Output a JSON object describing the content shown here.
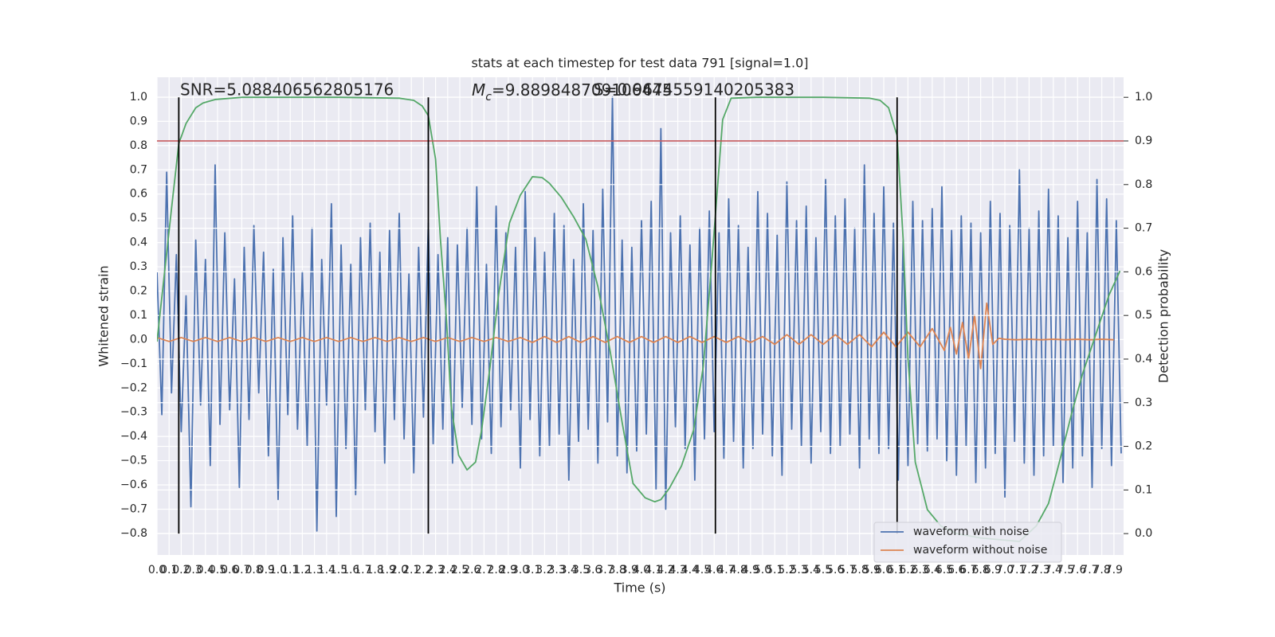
{
  "chart_data": {
    "type": "line",
    "title": "stats at each timestep for test data 791 [signal=1.0]",
    "xlabel": "Time (s)",
    "ylabel": "Whitened strain",
    "y2label": "Detection probability",
    "xlim": [
      0,
      7.98
    ],
    "ylim": [
      -0.889,
      1.082
    ],
    "y2lim": [
      -0.049,
      1.046
    ],
    "grid": true,
    "legend": "lower right",
    "xticks": [
      {
        "value": 0,
        "label": "0.0"
      },
      0.1,
      0.2,
      0.3,
      0.4,
      0.5,
      0.6,
      0.7,
      0.8,
      0.9,
      {
        "value": 1,
        "label": "1.0"
      },
      1.1,
      1.2,
      1.3,
      1.4,
      1.5,
      1.6,
      1.7,
      1.8,
      1.9,
      {
        "value": 2,
        "label": "2.0"
      },
      2.1,
      2.2,
      2.3,
      2.4,
      2.5,
      2.6,
      2.7,
      2.8,
      2.9,
      {
        "value": 3,
        "label": "3.0"
      },
      3.1,
      3.2,
      3.3,
      3.4,
      3.5,
      3.6,
      3.7,
      3.8,
      3.9,
      {
        "value": 4,
        "label": "4.0"
      },
      4.1,
      4.2,
      4.3,
      4.4,
      4.5,
      4.6,
      4.7,
      4.8,
      4.9,
      {
        "value": 5,
        "label": "5.0"
      },
      5.1,
      5.2,
      5.3,
      5.4,
      5.5,
      5.6,
      5.7,
      5.8,
      5.9,
      {
        "value": 6,
        "label": "6.0"
      },
      6.1,
      6.2,
      6.3,
      6.4,
      6.5,
      6.6,
      6.7,
      6.8,
      6.9,
      {
        "value": 7,
        "label": "7.0"
      },
      7.1,
      7.2,
      7.3,
      7.4,
      7.5,
      7.6,
      7.7,
      7.8,
      7.9
    ],
    "yticks": [
      {
        "value": -0.8,
        "label": "−0.8"
      },
      {
        "value": -0.7,
        "label": "−0.7"
      },
      {
        "value": -0.6,
        "label": "−0.6"
      },
      {
        "value": -0.5,
        "label": "−0.5"
      },
      {
        "value": -0.4,
        "label": "−0.4"
      },
      {
        "value": -0.3,
        "label": "−0.3"
      },
      {
        "value": -0.2,
        "label": "−0.2"
      },
      {
        "value": -0.1,
        "label": "−0.1"
      },
      {
        "value": 0,
        "label": "0.0"
      },
      0.1,
      0.2,
      0.3,
      0.4,
      0.5,
      0.6,
      0.7,
      0.8,
      0.9,
      {
        "value": 1,
        "label": "1.0"
      }
    ],
    "y2ticks": [
      {
        "value": 0,
        "label": "0.0"
      },
      0.1,
      0.2,
      0.3,
      0.4,
      0.5,
      0.6,
      0.7,
      0.8,
      0.9,
      {
        "value": 1,
        "label": "1.0"
      }
    ],
    "series": [
      {
        "name": "waveform with noise",
        "color": "#4c72b0",
        "x": [
          0,
          0.04,
          0.08,
          0.12,
          0.16,
          0.2,
          0.24,
          0.28,
          0.32,
          0.36,
          0.4,
          0.44,
          0.48,
          0.52,
          0.56,
          0.6,
          0.64,
          0.68,
          0.72,
          0.76,
          0.8,
          0.84,
          0.88,
          0.92,
          0.96,
          1,
          1.04,
          1.08,
          1.12,
          1.16,
          1.2,
          1.24,
          1.28,
          1.32,
          1.36,
          1.4,
          1.44,
          1.48,
          1.52,
          1.56,
          1.6,
          1.64,
          1.68,
          1.72,
          1.76,
          1.8,
          1.84,
          1.88,
          1.92,
          1.96,
          2,
          2.04,
          2.08,
          2.12,
          2.16,
          2.2,
          2.24,
          2.28,
          2.32,
          2.36,
          2.4,
          2.44,
          2.48,
          2.52,
          2.56,
          2.6,
          2.64,
          2.68,
          2.72,
          2.76,
          2.8,
          2.84,
          2.88,
          2.92,
          2.96,
          3,
          3.04,
          3.08,
          3.12,
          3.16,
          3.2,
          3.24,
          3.28,
          3.32,
          3.36,
          3.4,
          3.44,
          3.48,
          3.52,
          3.56,
          3.6,
          3.64,
          3.68,
          3.72,
          3.76,
          3.8,
          3.84,
          3.88,
          3.92,
          3.96,
          4,
          4.04,
          4.08,
          4.12,
          4.16,
          4.2,
          4.24,
          4.28,
          4.32,
          4.36,
          4.4,
          4.44,
          4.48,
          4.52,
          4.56,
          4.6,
          4.64,
          4.68,
          4.72,
          4.76,
          4.8,
          4.84,
          4.88,
          4.92,
          4.96,
          5,
          5.04,
          5.08,
          5.12,
          5.16,
          5.2,
          5.24,
          5.28,
          5.32,
          5.36,
          5.4,
          5.44,
          5.48,
          5.52,
          5.56,
          5.6,
          5.64,
          5.68,
          5.72,
          5.76,
          5.8,
          5.84,
          5.88,
          5.92,
          5.96,
          6,
          6.04,
          6.08,
          6.12,
          6.16,
          6.2,
          6.24,
          6.28,
          6.32,
          6.36,
          6.4,
          6.44,
          6.48,
          6.52,
          6.56,
          6.6,
          6.64,
          6.68,
          6.72,
          6.76,
          6.8,
          6.84,
          6.88,
          6.92,
          6.96,
          7,
          7.04,
          7.08,
          7.12,
          7.16,
          7.2,
          7.24,
          7.28,
          7.32,
          7.36,
          7.4,
          7.44,
          7.48,
          7.52,
          7.56,
          7.6,
          7.64,
          7.68,
          7.72,
          7.76,
          7.8,
          7.84,
          7.88,
          7.92,
          7.96
        ],
        "values": [
          0.28,
          -0.31,
          0.69,
          -0.22,
          0.35,
          -0.38,
          0.18,
          -0.69,
          0.41,
          -0.27,
          0.33,
          -0.52,
          0.72,
          -0.35,
          0.44,
          -0.29,
          0.25,
          -0.61,
          0.38,
          -0.33,
          0.47,
          -0.22,
          0.36,
          -0.48,
          0.29,
          -0.66,
          0.42,
          -0.31,
          0.51,
          -0.37,
          0.28,
          -0.44,
          0.46,
          -0.79,
          0.33,
          -0.27,
          0.56,
          -0.73,
          0.39,
          -0.45,
          0.31,
          -0.64,
          0.42,
          -0.29,
          0.48,
          -0.38,
          0.36,
          -0.51,
          0.45,
          -0.33,
          0.52,
          -0.41,
          0.27,
          -0.55,
          0.38,
          -0.32,
          0.48,
          -0.43,
          0.35,
          -0.37,
          0.42,
          -0.51,
          0.39,
          -0.28,
          0.46,
          -0.35,
          0.63,
          -0.41,
          0.31,
          -0.47,
          0.55,
          -0.36,
          0.44,
          -0.29,
          0.38,
          -0.53,
          0.61,
          -0.33,
          0.42,
          -0.48,
          0.36,
          -0.44,
          0.52,
          -0.39,
          0.47,
          -0.58,
          0.33,
          -0.42,
          0.56,
          -0.37,
          0.45,
          -0.51,
          0.62,
          -0.34,
          1.0,
          -0.48,
          0.41,
          -0.55,
          0.38,
          -0.46,
          0.49,
          -0.39,
          0.57,
          -0.62,
          0.87,
          -0.7,
          0.44,
          -0.36,
          0.51,
          -0.45,
          0.39,
          -0.58,
          0.46,
          -0.41,
          0.53,
          -0.38,
          0.44,
          -0.49,
          0.58,
          -0.42,
          0.47,
          -0.53,
          0.38,
          -0.45,
          0.61,
          -0.39,
          0.52,
          -0.48,
          0.43,
          -0.56,
          0.65,
          -0.37,
          0.49,
          -0.44,
          0.55,
          -0.51,
          0.42,
          -0.38,
          0.66,
          -0.47,
          0.51,
          -0.44,
          0.58,
          -0.39,
          0.46,
          -0.53,
          0.72,
          -0.41,
          0.52,
          -0.47,
          0.63,
          -0.45,
          0.48,
          -0.58,
          0.41,
          -0.52,
          0.57,
          -0.43,
          0.49,
          -0.46,
          0.54,
          -0.41,
          0.63,
          -0.5,
          0.45,
          -0.56,
          0.51,
          -0.44,
          0.48,
          -0.59,
          0.44,
          -0.53,
          0.57,
          -0.47,
          0.52,
          -0.65,
          0.47,
          -0.42,
          0.7,
          -0.51,
          0.46,
          -0.56,
          0.53,
          -0.48,
          0.62,
          -0.44,
          0.51,
          -0.59,
          0.42,
          -0.53,
          0.57,
          -0.48,
          0.44,
          -0.61,
          0.66,
          -0.45,
          0.58,
          -0.52,
          0.49,
          -0.47
        ]
      },
      {
        "name": "waveform without noise",
        "color": "#dd8452",
        "x": [
          0,
          0.1,
          0.2,
          0.3,
          0.4,
          0.5,
          0.6,
          0.7,
          0.8,
          0.9,
          1,
          1.1,
          1.2,
          1.3,
          1.4,
          1.5,
          1.6,
          1.7,
          1.8,
          1.9,
          2,
          2.1,
          2.2,
          2.3,
          2.4,
          2.5,
          2.6,
          2.7,
          2.8,
          2.9,
          3,
          3.1,
          3.2,
          3.3,
          3.4,
          3.5,
          3.6,
          3.7,
          3.8,
          3.9,
          4,
          4.1,
          4.2,
          4.3,
          4.4,
          4.5,
          4.6,
          4.7,
          4.8,
          4.9,
          5,
          5.1,
          5.2,
          5.3,
          5.4,
          5.5,
          5.6,
          5.7,
          5.8,
          5.9,
          6,
          6.1,
          6.2,
          6.3,
          6.4,
          6.5,
          6.55,
          6.6,
          6.65,
          6.7,
          6.75,
          6.8,
          6.85,
          6.9,
          6.95,
          7,
          7.1,
          7.2,
          7.3,
          7.4,
          7.5,
          7.6,
          7.7,
          7.8,
          7.9
        ],
        "values": [
          0.008,
          -0.008,
          0.008,
          -0.008,
          0.008,
          -0.008,
          0.008,
          -0.008,
          0.008,
          -0.008,
          0.008,
          -0.008,
          0.008,
          -0.008,
          0.008,
          -0.008,
          0.008,
          -0.008,
          0.008,
          -0.008,
          0.008,
          -0.008,
          0.008,
          -0.008,
          0.008,
          -0.008,
          0.008,
          -0.008,
          0.008,
          -0.008,
          0.008,
          -0.012,
          0.012,
          -0.012,
          0.012,
          -0.012,
          0.012,
          -0.012,
          0.012,
          -0.012,
          0.012,
          -0.012,
          0.012,
          -0.012,
          0.012,
          -0.012,
          0.012,
          -0.012,
          0.012,
          -0.012,
          0.012,
          -0.02,
          0.02,
          -0.02,
          0.02,
          -0.02,
          0.02,
          -0.02,
          0.02,
          -0.03,
          0.03,
          -0.03,
          0.03,
          -0.03,
          0.045,
          -0.045,
          0.05,
          -0.06,
          0.07,
          -0.08,
          0.1,
          -0.12,
          0.15,
          -0.02,
          0.005,
          0.001,
          -0.001,
          0.001,
          -0.001,
          0.001,
          -0.001,
          0.001,
          -0.001,
          0.001,
          -0.001
        ]
      },
      {
        "color": "#55a868",
        "axis": "y2",
        "x": [
          0,
          0.12,
          0.18,
          0.24,
          0.32,
          0.38,
          0.48,
          0.7,
          1,
          1.5,
          2,
          2.12,
          2.19,
          2.24,
          2.3,
          2.34,
          2.39,
          2.43,
          2.49,
          2.56,
          2.63,
          2.68,
          2.75,
          2.82,
          2.91,
          3,
          3.1,
          3.18,
          3.24,
          3.34,
          3.44,
          3.54,
          3.64,
          3.74,
          3.84,
          3.93,
          4.03,
          4.11,
          4.16,
          4.23,
          4.33,
          4.43,
          4.51,
          4.58,
          4.63,
          4.67,
          4.74,
          4.95,
          5.5,
          5.88,
          5.97,
          6.04,
          6.11,
          6.16,
          6.2,
          6.26,
          6.36,
          6.47,
          6.6,
          6.8,
          7,
          7.12,
          7.26,
          7.36,
          7.45,
          7.55,
          7.64,
          7.75,
          7.86,
          7.95
        ],
        "values": [
          0.44,
          0.745,
          0.894,
          0.94,
          0.976,
          0.987,
          0.995,
          1,
          1,
          1,
          0.998,
          0.993,
          0.98,
          0.958,
          0.858,
          0.675,
          0.49,
          0.29,
          0.18,
          0.146,
          0.164,
          0.237,
          0.383,
          0.547,
          0.712,
          0.776,
          0.818,
          0.816,
          0.803,
          0.77,
          0.726,
          0.675,
          0.566,
          0.42,
          0.255,
          0.115,
          0.082,
          0.073,
          0.078,
          0.104,
          0.155,
          0.237,
          0.383,
          0.62,
          0.803,
          0.949,
          0.998,
          1,
          1,
          0.998,
          0.993,
          0.976,
          0.912,
          0.675,
          0.401,
          0.164,
          0.055,
          0.018,
          0,
          -0.01,
          -0.015,
          -0.018,
          0.018,
          0.069,
          0.164,
          0.274,
          0.365,
          0.456,
          0.547,
          0.602
        ]
      }
    ],
    "threshold": {
      "value": 0.9,
      "color": "#c44e52",
      "axis": "y2"
    },
    "vlines": {
      "values": [
        0.18,
        2.24,
        4.61,
        6.11
      ],
      "color": "#000000"
    },
    "annotations": [
      {
        "text": "SNR=5.088406562805176"
      },
      {
        "symbol": "M",
        "subscript": "c",
        "text": "=9.889848709106445"
      },
      {
        "text": "S=0.9674559140205383"
      }
    ]
  }
}
